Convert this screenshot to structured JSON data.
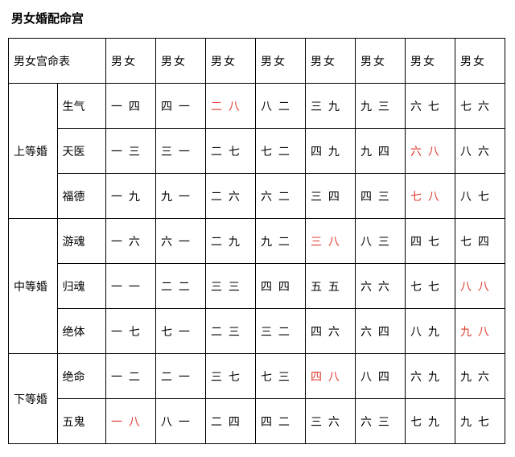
{
  "title": "男女婚配命宫",
  "colors": {
    "text": "#000000",
    "highlight": "#e13a2f",
    "background": "#ffffff",
    "border": "#000000"
  },
  "header": {
    "lead": "男女宫命表",
    "cols": [
      "男女",
      "男女",
      "男女",
      "男女",
      "男女",
      "男女",
      "男女",
      "男女"
    ]
  },
  "groups": [
    {
      "label": "上等婚",
      "rows": [
        {
          "sub": "生气",
          "cells": [
            {
              "t": "一 四"
            },
            {
              "t": "四 一"
            },
            {
              "t": "二 八",
              "r": true
            },
            {
              "t": "八 二"
            },
            {
              "t": "三 九"
            },
            {
              "t": "九 三"
            },
            {
              "t": "六 七"
            },
            {
              "t": "七 六"
            }
          ]
        },
        {
          "sub": "天医",
          "cells": [
            {
              "t": "一 三"
            },
            {
              "t": "三 一"
            },
            {
              "t": "二 七"
            },
            {
              "t": "七 二"
            },
            {
              "t": "四 九"
            },
            {
              "t": "九 四"
            },
            {
              "t": "六 八",
              "r": true
            },
            {
              "t": "八 六"
            }
          ]
        },
        {
          "sub": "福德",
          "cells": [
            {
              "t": "一 九"
            },
            {
              "t": "九 一"
            },
            {
              "t": "二 六"
            },
            {
              "t": "六 二"
            },
            {
              "t": "三 四"
            },
            {
              "t": "四 三"
            },
            {
              "t": "七 八",
              "r": true
            },
            {
              "t": "八 七"
            }
          ]
        }
      ]
    },
    {
      "label": "中等婚",
      "rows": [
        {
          "sub": "游魂",
          "cells": [
            {
              "t": "一 六"
            },
            {
              "t": "六 一"
            },
            {
              "t": "二 九"
            },
            {
              "t": "九 二"
            },
            {
              "t": "三 八",
              "r": true
            },
            {
              "t": "八 三"
            },
            {
              "t": "四 七"
            },
            {
              "t": "七 四"
            }
          ]
        },
        {
          "sub": "归魂",
          "cells": [
            {
              "t": "一 一"
            },
            {
              "t": "二 二"
            },
            {
              "t": "三 三"
            },
            {
              "t": "四 四"
            },
            {
              "t": "五 五"
            },
            {
              "t": "六 六"
            },
            {
              "t": "七 七"
            },
            {
              "t": "八 八",
              "r": true
            }
          ]
        },
        {
          "sub": "绝体",
          "cells": [
            {
              "t": "一 七"
            },
            {
              "t": "七 一"
            },
            {
              "t": "二 三"
            },
            {
              "t": "三 二"
            },
            {
              "t": "四 六"
            },
            {
              "t": "六 四"
            },
            {
              "t": "八 九"
            },
            {
              "t": "九 八",
              "r": true
            }
          ]
        }
      ]
    },
    {
      "label": "下等婚",
      "rows": [
        {
          "sub": "绝命",
          "cells": [
            {
              "t": "一 二"
            },
            {
              "t": "二 一"
            },
            {
              "t": "三 七"
            },
            {
              "t": "七 三"
            },
            {
              "t": "四 八",
              "r": true
            },
            {
              "t": "八 四"
            },
            {
              "t": "六 九"
            },
            {
              "t": "九 六"
            }
          ]
        },
        {
          "sub": "五鬼",
          "cells": [
            {
              "t": "一 八",
              "r": true
            },
            {
              "t": "八 一"
            },
            {
              "t": "二 四"
            },
            {
              "t": "四 二"
            },
            {
              "t": "三 六"
            },
            {
              "t": "六 三"
            },
            {
              "t": "七 九"
            },
            {
              "t": "九 七"
            }
          ]
        }
      ]
    }
  ]
}
